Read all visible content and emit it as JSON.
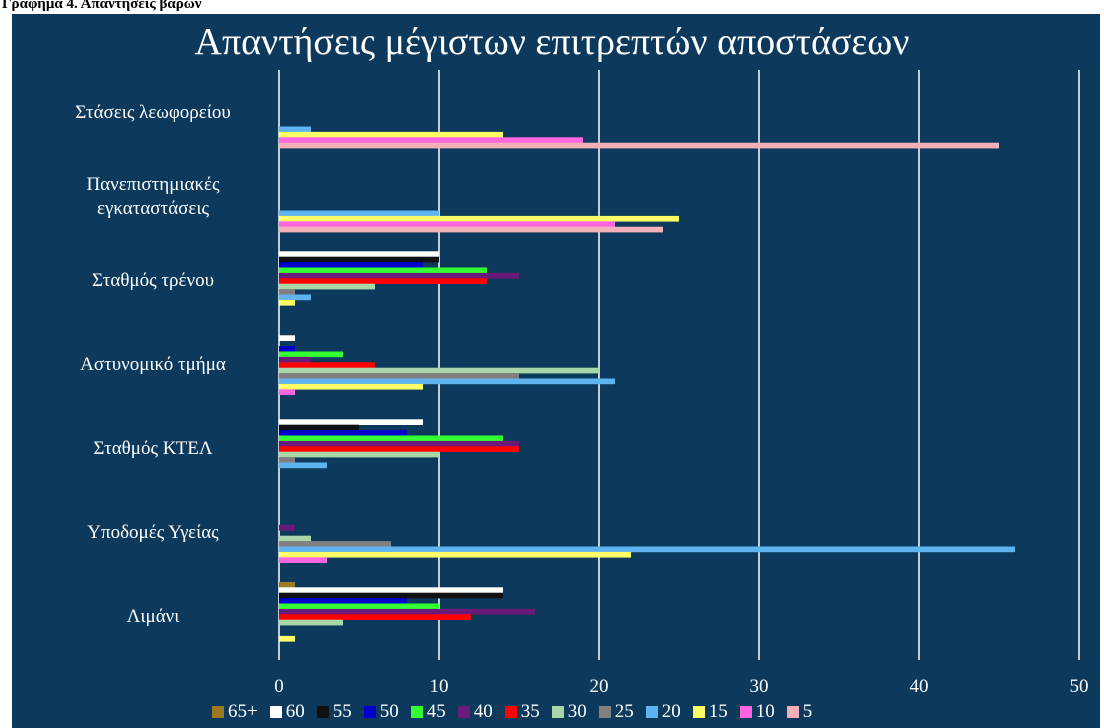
{
  "caption": "Γράφημα 4. Απαντήσεις βαρών",
  "chart_data": {
    "type": "bar",
    "orientation": "horizontal",
    "title": "Απαντήσεις μέγιστων επιτρεπτών αποστάσεων",
    "categories": [
      "Στάσεις λεωφορείου",
      "Πανεπιστημιακές εγκαταστάσεις",
      "Σταθμός τρένου",
      "Αστυνομικό τμήμα",
      "Σταθμός ΚΤΕΛ",
      "Υποδομές Υγείας",
      "Λιμάνι"
    ],
    "series": [
      {
        "name": "65+",
        "color": "#9c7a1e",
        "values": [
          0,
          0,
          0,
          0,
          0,
          0,
          1
        ]
      },
      {
        "name": "60",
        "color": "#ffffff",
        "values": [
          0,
          0,
          10,
          1,
          9,
          0,
          14
        ]
      },
      {
        "name": "55",
        "color": "#111111",
        "values": [
          0,
          0,
          10,
          0,
          5,
          0,
          14
        ]
      },
      {
        "name": "50",
        "color": "#0000cc",
        "values": [
          0,
          0,
          9,
          1,
          8,
          0,
          8
        ]
      },
      {
        "name": "45",
        "color": "#33ff33",
        "values": [
          0,
          0,
          13,
          4,
          14,
          0,
          10
        ]
      },
      {
        "name": "40",
        "color": "#6a1b7a",
        "values": [
          0,
          0,
          15,
          2,
          15,
          1,
          16
        ]
      },
      {
        "name": "35",
        "color": "#ff0000",
        "values": [
          0,
          0,
          13,
          6,
          15,
          0,
          12
        ]
      },
      {
        "name": "30",
        "color": "#a8d8a8",
        "values": [
          0,
          0,
          6,
          20,
          10,
          2,
          4
        ]
      },
      {
        "name": "25",
        "color": "#808080",
        "values": [
          0,
          0,
          1,
          15,
          1,
          7,
          0
        ]
      },
      {
        "name": "20",
        "color": "#5fb4f0",
        "values": [
          2,
          10,
          2,
          21,
          3,
          46,
          0
        ]
      },
      {
        "name": "15",
        "color": "#ffff66",
        "values": [
          14,
          25,
          1,
          9,
          0,
          22,
          1
        ]
      },
      {
        "name": "10",
        "color": "#ff66e0",
        "values": [
          19,
          21,
          0,
          1,
          0,
          3,
          0
        ]
      },
      {
        "name": "5",
        "color": "#f4b0b8",
        "values": [
          45,
          24,
          0,
          0,
          0,
          0,
          0
        ]
      }
    ],
    "xlim": [
      0,
      50
    ],
    "xticks": [
      0,
      10,
      20,
      30,
      40,
      50
    ],
    "grid": true,
    "legend": "bottom"
  }
}
